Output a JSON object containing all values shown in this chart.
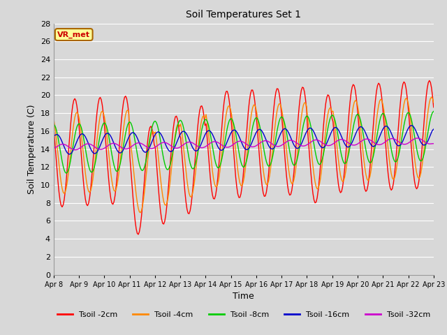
{
  "title": "Soil Temperatures Set 1",
  "xlabel": "Time",
  "ylabel": "Soil Temperature (C)",
  "ylim": [
    0,
    28
  ],
  "yticks": [
    0,
    2,
    4,
    6,
    8,
    10,
    12,
    14,
    16,
    18,
    20,
    22,
    24,
    26,
    28
  ],
  "background_color": "#d8d8d8",
  "plot_bg_color": "#d8d8d8",
  "grid_color": "#ffffff",
  "annotation_text": "VR_met",
  "annotation_color": "#cc0000",
  "annotation_bg": "#ffff99",
  "annotation_border": "#aa6600",
  "legend_entries": [
    "Tsoil -2cm",
    "Tsoil -4cm",
    "Tsoil -8cm",
    "Tsoil -16cm",
    "Tsoil -32cm"
  ],
  "line_colors": [
    "#ff0000",
    "#ff8800",
    "#00cc00",
    "#0000cc",
    "#cc00cc"
  ],
  "line_widths": [
    1.0,
    1.0,
    1.0,
    1.0,
    1.0
  ],
  "num_points": 360,
  "hours": 360,
  "x_tick_labels": [
    "Apr 8",
    "Apr 9",
    "Apr 10",
    "Apr 11",
    "Apr 12",
    "Apr 13",
    "Apr 14",
    "Apr 15",
    "Apr 16",
    "Apr 17",
    "Apr 18",
    "Apr 19",
    "Apr 20",
    "Apr 21",
    "Apr 22",
    "Apr 23"
  ],
  "x_tick_positions": [
    0,
    24,
    48,
    72,
    96,
    120,
    144,
    168,
    192,
    216,
    240,
    264,
    288,
    312,
    336,
    360
  ]
}
